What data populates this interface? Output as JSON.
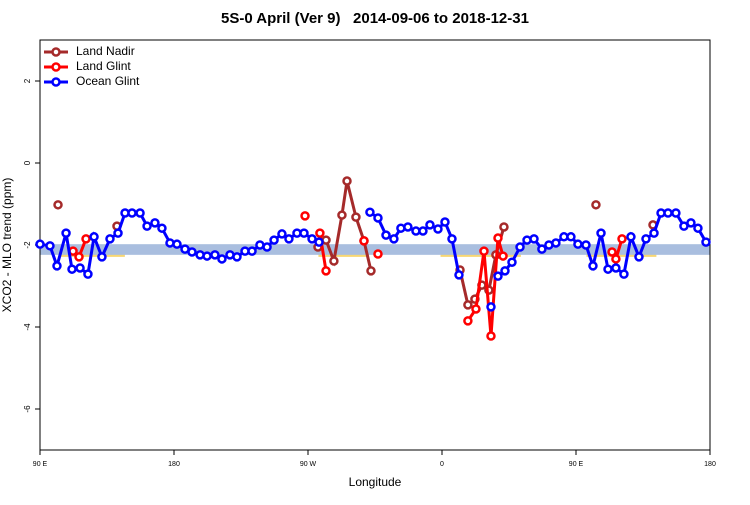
{
  "chart_data": {
    "type": "line",
    "title": "5S-0 April (Ver 9)   2014-09-06 to 2018-12-31",
    "xlabel": "Longitude",
    "ylabel": "XCO2 - MLO trend (ppm)",
    "xlim": [
      90,
      540
    ],
    "ylim": [
      -7,
      3
    ],
    "xticks": [
      {
        "value": 90,
        "label": "90 E"
      },
      {
        "value": 180,
        "label": "180"
      },
      {
        "value": 270,
        "label": "90 W"
      },
      {
        "value": 360,
        "label": "0"
      },
      {
        "value": 450,
        "label": "90 E"
      },
      {
        "value": 540,
        "label": "180"
      }
    ],
    "yticks": [
      -6,
      -4,
      -2,
      0,
      2
    ],
    "legend": "top-left",
    "bands": [
      {
        "color": "#f7d774",
        "ymin": -2.29,
        "ymax": -2.05,
        "ranges": [
          [
            103,
            147
          ],
          [
            277,
            311
          ],
          [
            359,
            413
          ],
          [
            457,
            504
          ]
        ]
      },
      {
        "color": "#a9bedf",
        "ymin": -2.24,
        "ymax": -1.98,
        "ranges": [
          [
            90,
            540
          ]
        ]
      }
    ],
    "series": [
      {
        "name": "Land Nadir",
        "color": "#a52a2a",
        "x": [
          102.1,
          null,
          141.7,
          null,
          276.7,
          282.1,
          287.4,
          292.8,
          296.2,
          302.2,
          307.6,
          312.3,
          null,
          372.1,
          377.4,
          382.1,
          386.8,
          391.5,
          396.2,
          401.6,
          null,
          463.4,
          null,
          501.7
        ],
        "values": [
          -1.02,
          null,
          -1.54,
          null,
          -2.05,
          -1.88,
          -2.39,
          -1.27,
          -0.44,
          -1.32,
          -1.9,
          -2.63,
          null,
          -2.61,
          -3.46,
          -3.32,
          -2.98,
          -3.1,
          -2.24,
          -1.56,
          null,
          -1.02,
          null,
          -1.51
        ]
      },
      {
        "name": "Land Glint",
        "color": "#ff0000",
        "x": [
          112.2,
          116.2,
          120.9,
          null,
          268.0,
          null,
          278.0,
          282.1,
          null,
          307.6,
          null,
          317.0,
          null,
          377.4,
          382.8,
          388.2,
          392.9,
          397.6,
          401.0,
          null,
          474.2,
          476.8,
          480.9
        ],
        "values": [
          -2.15,
          -2.29,
          -1.85,
          null,
          -1.29,
          null,
          -1.71,
          -2.63,
          null,
          -1.9,
          null,
          -2.22,
          null,
          -3.85,
          -3.56,
          -2.15,
          -4.22,
          -1.83,
          -2.27,
          null,
          -2.17,
          -2.34,
          -1.85
        ]
      },
      {
        "name": "Ocean Glint",
        "color": "#0000ff",
        "x": [
          90,
          96.7,
          101.4,
          107.5,
          111.5,
          116.9,
          122.2,
          126.3,
          131.6,
          137.0,
          142.4,
          147.1,
          151.8,
          157.2,
          161.9,
          167.2,
          171.9,
          177.3,
          182.0,
          187.4,
          192.1,
          197.5,
          202.2,
          207.5,
          212.2,
          217.6,
          222.3,
          227.7,
          232.4,
          237.7,
          242.5,
          247.2,
          252.5,
          257.2,
          262.6,
          267.3,
          272.7,
          277.4,
          null,
          311.6,
          317.0,
          322.4,
          327.7,
          332.4,
          337.1,
          342.5,
          347.2,
          351.9,
          357.3,
          362.0,
          366.7,
          371.4,
          null,
          392.9,
          null,
          397.6,
          402.3,
          407.0,
          412.4,
          417.1,
          421.8,
          427.1,
          431.8,
          436.5,
          441.9,
          446.6,
          451.3,
          456.7,
          461.4,
          466.8,
          471.5,
          476.8,
          482.2,
          486.9,
          492.3,
          497.0,
          502.4,
          507.1,
          511.8,
          517.1,
          522.5,
          527.2,
          531.9,
          537.3
        ],
        "values": [
          -1.98,
          -2.02,
          -2.51,
          -1.71,
          -2.59,
          -2.56,
          -2.71,
          -1.8,
          -2.29,
          -1.85,
          -1.71,
          -1.22,
          -1.22,
          -1.22,
          -1.54,
          -1.46,
          -1.59,
          -1.95,
          -1.98,
          -2.1,
          -2.17,
          -2.24,
          -2.27,
          -2.24,
          -2.34,
          -2.24,
          -2.29,
          -2.15,
          -2.15,
          -2.0,
          -2.05,
          -1.88,
          -1.73,
          -1.85,
          -1.71,
          -1.71,
          -1.85,
          -1.93,
          null,
          -1.2,
          -1.34,
          -1.76,
          -1.85,
          -1.59,
          -1.56,
          -1.66,
          -1.66,
          -1.51,
          -1.61,
          -1.44,
          -1.85,
          -2.73,
          null,
          -3.51,
          null,
          -2.76,
          -2.63,
          -2.42,
          -2.05,
          -1.88,
          -1.85,
          -2.1,
          -2.0,
          -1.95,
          -1.8,
          -1.8,
          -1.98,
          -2.0,
          -2.51,
          -1.71,
          -2.59,
          -2.56,
          -2.71,
          -1.8,
          -2.29,
          -1.85,
          -1.71,
          -1.22,
          -1.22,
          -1.22,
          -1.54,
          -1.46,
          -1.59,
          -1.93
        ]
      }
    ]
  }
}
